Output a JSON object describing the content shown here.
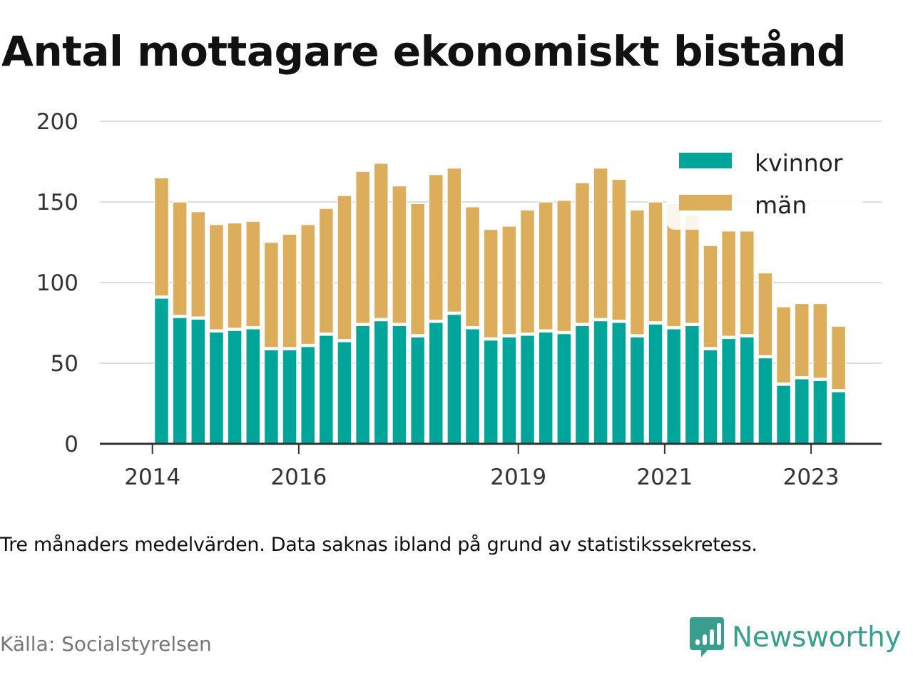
{
  "title": "Antal mottagare ekonomiskt bistånd",
  "note": "Tre månaders medelvärden. Data saknas ibland på grund av statistikssekretess.",
  "source": "Källa: Socialstyrelsen",
  "brand": {
    "name": "Newsworthy",
    "icon": "newsworthy-logo-icon",
    "color": "#3a9e8e"
  },
  "colors": {
    "kvinnor": "#00a59a",
    "man": "#dcae5b",
    "grid": "#dddddd",
    "axis": "#333333"
  },
  "chart_data": {
    "type": "bar",
    "stacked": true,
    "ylim": [
      0,
      200
    ],
    "yticks": [
      0,
      50,
      100,
      150,
      200
    ],
    "xticks": [
      {
        "label": "2014",
        "index": -0.5
      },
      {
        "label": "2016",
        "index": 7.5
      },
      {
        "label": "2019",
        "index": 19.5
      },
      {
        "label": "2021",
        "index": 27.5
      },
      {
        "label": "2023",
        "index": 35.5
      }
    ],
    "legend_position": "top-right",
    "grid": true,
    "series": [
      {
        "name": "kvinnor",
        "color": "#00a59a",
        "values": [
          91,
          79,
          78,
          70,
          71,
          72,
          59,
          59,
          61,
          68,
          64,
          74,
          77,
          74,
          67,
          76,
          81,
          72,
          65,
          67,
          68,
          70,
          69,
          74,
          77,
          76,
          67,
          75,
          72,
          74,
          59,
          66,
          67,
          54,
          37,
          41,
          40,
          33
        ]
      },
      {
        "name": "män",
        "color": "#dcae5b",
        "values": [
          74,
          71,
          66,
          66,
          66,
          66,
          66,
          71,
          75,
          78,
          90,
          95,
          97,
          86,
          82,
          91,
          90,
          75,
          68,
          68,
          77,
          80,
          82,
          88,
          94,
          88,
          78,
          75,
          77,
          68,
          64,
          66,
          65,
          52,
          48,
          46,
          47,
          40
        ]
      }
    ]
  }
}
